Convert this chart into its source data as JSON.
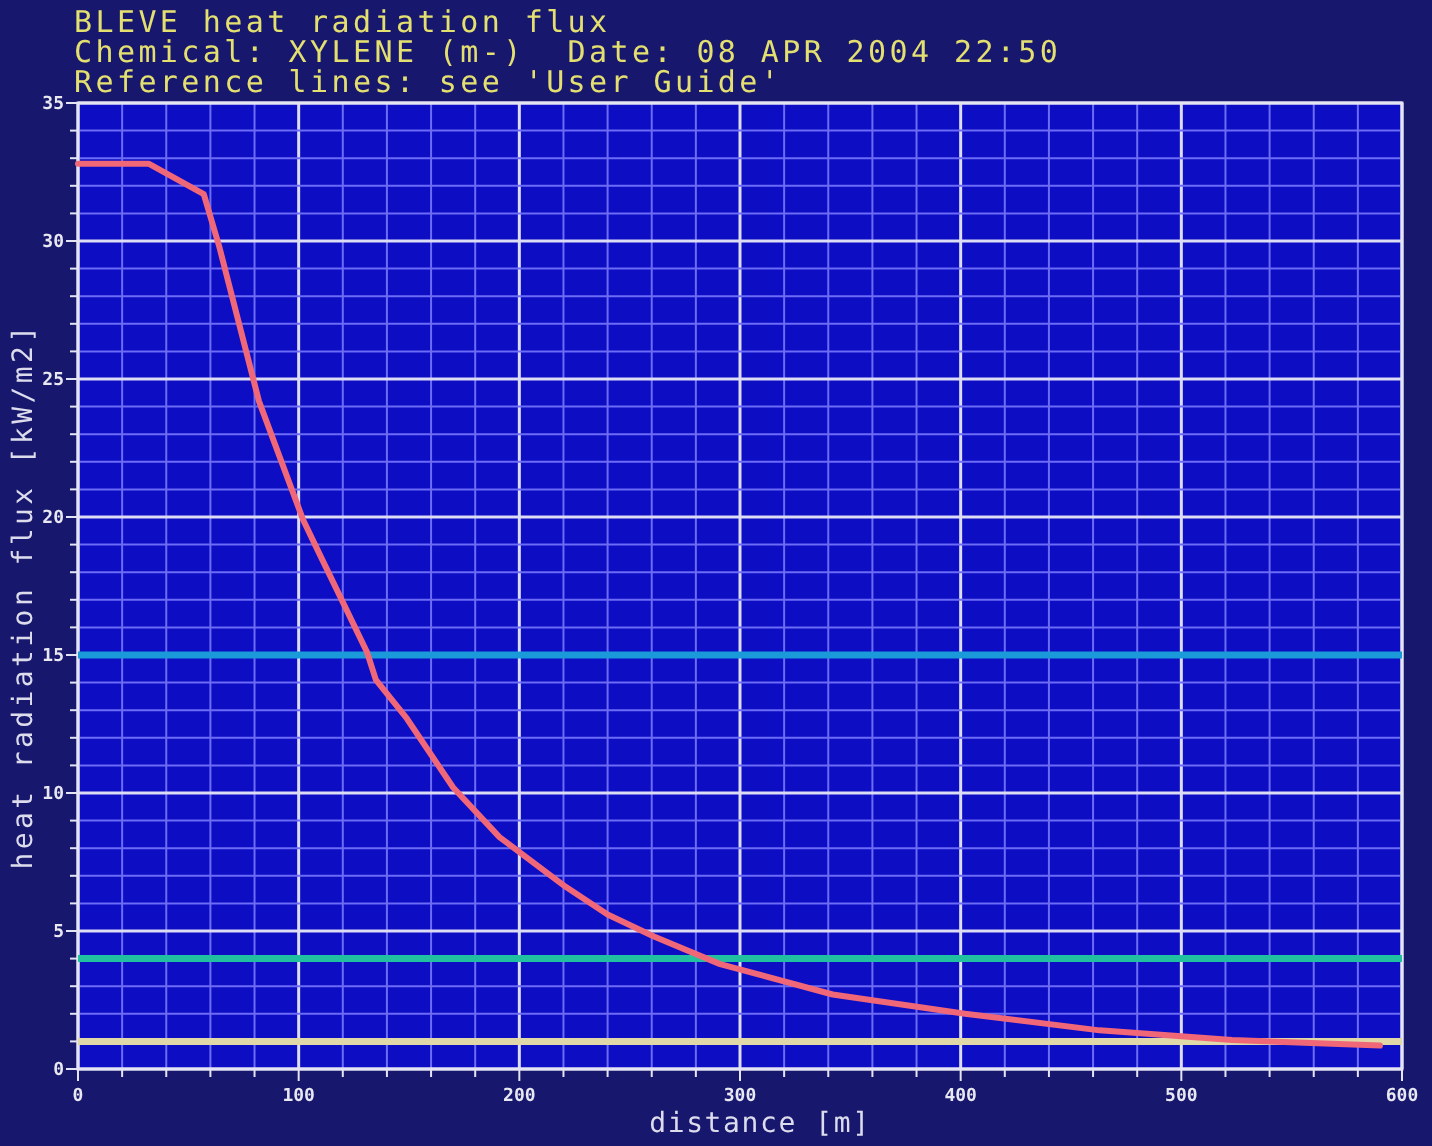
{
  "chart_data": {
    "type": "line",
    "title": "BLEVE heat radiation flux",
    "subtitle": "Chemical: XYLENE (m-)  Date: 08 APR 2004 22:50",
    "annotations": [
      "Reference lines: see 'User Guide'"
    ],
    "xlabel": "distance [m]",
    "ylabel": "heat radiation flux [kW/m2]",
    "x": [
      0,
      32,
      57,
      64,
      82,
      102,
      108,
      131,
      135,
      149,
      170,
      191,
      221,
      240,
      261,
      291,
      342,
      402,
      463,
      523,
      590
    ],
    "series": [
      {
        "color": "#f06878",
        "values": [
          32.8,
          32.8,
          31.7,
          29.8,
          24.2,
          19.9,
          18.9,
          15.1,
          14.1,
          12.7,
          10.2,
          8.4,
          6.6,
          5.6,
          4.8,
          3.8,
          2.7,
          2.0,
          1.4,
          1.05,
          0.85
        ]
      }
    ],
    "xlim": [
      0,
      600
    ],
    "ylim": [
      0,
      35
    ],
    "xticks": [
      0,
      {
        "value": 20,
        "label": null
      },
      {
        "value": 40,
        "label": null
      },
      {
        "value": 60,
        "label": null
      },
      {
        "value": 80,
        "label": null
      },
      100,
      {
        "value": 120,
        "label": null
      },
      {
        "value": 140,
        "label": null
      },
      {
        "value": 160,
        "label": null
      },
      {
        "value": 180,
        "label": null
      },
      200,
      {
        "value": 220,
        "label": null
      },
      {
        "value": 240,
        "label": null
      },
      {
        "value": 260,
        "label": null
      },
      {
        "value": 280,
        "label": null
      },
      300,
      {
        "value": 320,
        "label": null
      },
      {
        "value": 340,
        "label": null
      },
      {
        "value": 360,
        "label": null
      },
      {
        "value": 380,
        "label": null
      },
      400,
      {
        "value": 420,
        "label": null
      },
      {
        "value": 440,
        "label": null
      },
      {
        "value": 460,
        "label": null
      },
      {
        "value": 480,
        "label": null
      },
      500,
      {
        "value": 520,
        "label": null
      },
      {
        "value": 540,
        "label": null
      },
      {
        "value": 560,
        "label": null
      },
      {
        "value": 580,
        "label": null
      },
      600
    ],
    "yticks": [
      0,
      {
        "value": 1,
        "label": null
      },
      {
        "value": 2,
        "label": null
      },
      {
        "value": 3,
        "label": null
      },
      {
        "value": 4,
        "label": null
      },
      5,
      {
        "value": 6,
        "label": null
      },
      {
        "value": 7,
        "label": null
      },
      {
        "value": 8,
        "label": null
      },
      {
        "value": 9,
        "label": null
      },
      10,
      {
        "value": 11,
        "label": null
      },
      {
        "value": 12,
        "label": null
      },
      {
        "value": 13,
        "label": null
      },
      {
        "value": 14,
        "label": null
      },
      15,
      {
        "value": 16,
        "label": null
      },
      {
        "value": 17,
        "label": null
      },
      {
        "value": 18,
        "label": null
      },
      {
        "value": 19,
        "label": null
      },
      20,
      {
        "value": 21,
        "label": null
      },
      {
        "value": 22,
        "label": null
      },
      {
        "value": 23,
        "label": null
      },
      {
        "value": 24,
        "label": null
      },
      25,
      {
        "value": 26,
        "label": null
      },
      {
        "value": 27,
        "label": null
      },
      {
        "value": 28,
        "label": null
      },
      {
        "value": 29,
        "label": null
      },
      30,
      {
        "value": 31,
        "label": null
      },
      {
        "value": 32,
        "label": null
      },
      {
        "value": 33,
        "label": null
      },
      {
        "value": 34,
        "label": null
      },
      35
    ],
    "ref_lines": [
      {
        "axis": "y",
        "value": 15,
        "color": "#1a9ad8"
      },
      {
        "axis": "y",
        "value": 4,
        "color": "#20c0a0"
      },
      {
        "axis": "y",
        "value": 1,
        "color": "#e0d8a8"
      }
    ],
    "grid": true
  }
}
